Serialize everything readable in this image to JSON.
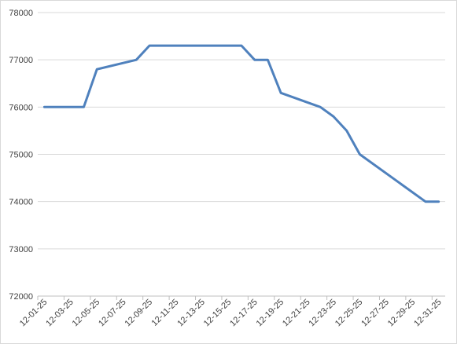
{
  "chart_data": {
    "type": "line",
    "title": "",
    "xlabel": "",
    "ylabel": "",
    "grid": true,
    "legend": "none",
    "line_color": "#4f81bd",
    "grid_color": "#d9d9d9",
    "ylim": [
      72000,
      78000
    ],
    "yticks": [
      72000,
      73000,
      74000,
      75000,
      76000,
      77000,
      78000
    ],
    "yticklabels": [
      "72000",
      "73000",
      "74000",
      "75000",
      "76000",
      "77000",
      "78000"
    ],
    "xticklabels": [
      "12-01-25",
      "12-03-25",
      "12-05-25",
      "12-07-25",
      "12-09-25",
      "12-11-25",
      "12-13-25",
      "12-15-25",
      "12-17-25",
      "12-19-25",
      "12-21-25",
      "12-23-25",
      "12-25-25",
      "12-27-25",
      "12-29-25",
      "12-31-25"
    ],
    "x": [
      "12-01-25",
      "12-04-25",
      "12-05-25",
      "12-08-25",
      "12-09-25",
      "12-16-25",
      "12-17-25",
      "12-18-25",
      "12-19-25",
      "12-22-25",
      "12-23-25",
      "12-24-25",
      "12-25-25",
      "12-30-25",
      "12-31-25"
    ],
    "values": [
      76000,
      76000,
      76800,
      77000,
      77300,
      77300,
      77000,
      77000,
      76300,
      76000,
      75800,
      75500,
      75000,
      74000,
      74000
    ]
  }
}
